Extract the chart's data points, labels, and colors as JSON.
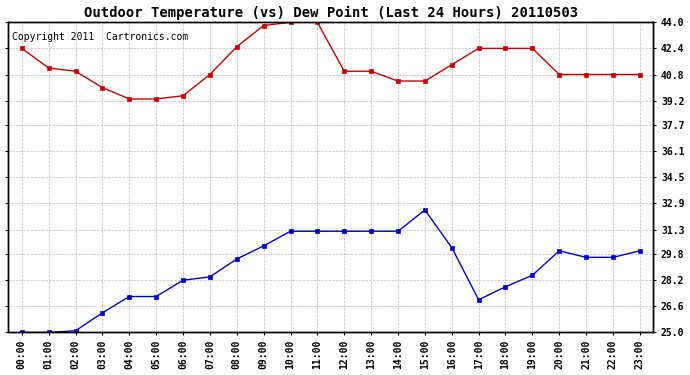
{
  "title": "Outdoor Temperature (vs) Dew Point (Last 24 Hours) 20110503",
  "subtitle": "Copyright 2011  Cartronics.com",
  "x_labels": [
    "00:00",
    "01:00",
    "02:00",
    "03:00",
    "04:00",
    "05:00",
    "06:00",
    "07:00",
    "08:00",
    "09:00",
    "10:00",
    "11:00",
    "12:00",
    "13:00",
    "14:00",
    "15:00",
    "16:00",
    "17:00",
    "18:00",
    "19:00",
    "20:00",
    "21:00",
    "22:00",
    "23:00"
  ],
  "temp_data": [
    42.4,
    41.2,
    41.0,
    40.0,
    39.3,
    39.3,
    39.5,
    40.8,
    42.5,
    43.8,
    44.0,
    44.0,
    41.0,
    41.0,
    40.4,
    40.4,
    41.4,
    42.4,
    42.4,
    42.4,
    40.8,
    40.8,
    40.8,
    40.8
  ],
  "dew_data": [
    25.0,
    25.0,
    25.1,
    26.2,
    27.2,
    27.2,
    28.2,
    28.4,
    29.5,
    30.3,
    31.2,
    31.2,
    31.2,
    31.2,
    31.2,
    32.5,
    30.2,
    27.0,
    27.8,
    28.5,
    30.0,
    29.6,
    29.6,
    30.0
  ],
  "temp_color": "#cc0000",
  "dew_color": "#0000cc",
  "background_color": "#ffffff",
  "grid_color": "#aaaaaa",
  "y_ticks": [
    25.0,
    26.6,
    28.2,
    29.8,
    31.3,
    32.9,
    34.5,
    36.1,
    37.7,
    39.2,
    40.8,
    42.4,
    44.0
  ],
  "y_tick_labels": [
    "25.0",
    "26.6",
    "28.2",
    "29.8",
    "31.3",
    "32.9",
    "34.5",
    "36.1",
    "37.7",
    "39.2",
    "40.8",
    "42.4",
    "44.0"
  ],
  "ylim": [
    25.0,
    44.0
  ],
  "title_fontsize": 10,
  "subtitle_fontsize": 7,
  "tick_fontsize": 7
}
